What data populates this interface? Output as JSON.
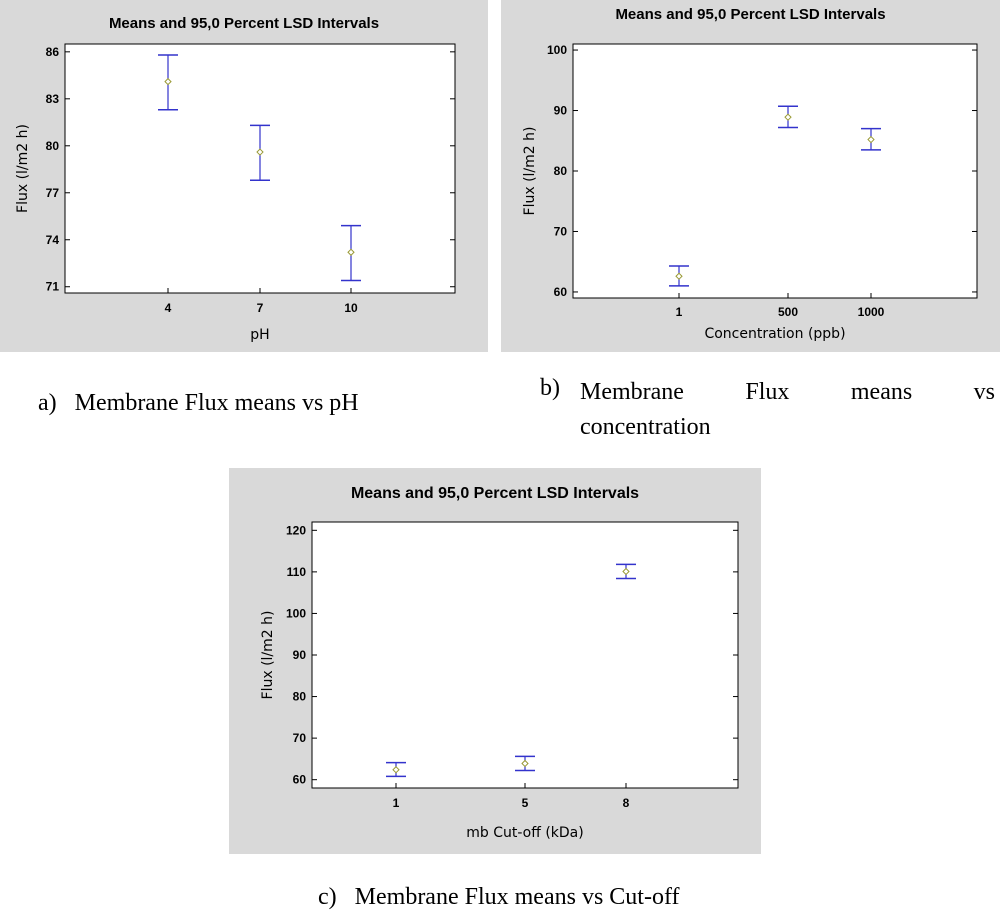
{
  "chart_data": [
    {
      "type": "scatter",
      "title": "Means and 95,0 Percent LSD Intervals",
      "xlabel": "pH",
      "ylabel": "Flux (l/m2 h)",
      "categories": [
        "4",
        "7",
        "10"
      ],
      "means": [
        84.1,
        79.6,
        73.2
      ],
      "lower": [
        82.3,
        77.8,
        71.4
      ],
      "upper": [
        85.8,
        81.3,
        74.9
      ],
      "ylim": [
        70.6,
        86.5
      ],
      "yticks": [
        86,
        83,
        80,
        77,
        74,
        71
      ],
      "grid": false,
      "colors": {
        "interval": "#3333cc",
        "marker": "#999933"
      }
    },
    {
      "type": "scatter",
      "title": "Means and 95,0 Percent LSD Intervals",
      "xlabel": "Concentration (ppb)",
      "ylabel": "Flux (l/m2 h)",
      "categories": [
        "1",
        "500",
        "1000"
      ],
      "means": [
        62.6,
        88.9,
        85.2
      ],
      "lower": [
        61.0,
        87.2,
        83.5
      ],
      "upper": [
        64.3,
        90.7,
        87.0
      ],
      "ylim": [
        59,
        101
      ],
      "yticks": [
        100,
        90,
        80,
        70,
        60
      ],
      "grid": false,
      "colors": {
        "interval": "#3333cc",
        "marker": "#999933"
      }
    },
    {
      "type": "scatter",
      "title": "Means and 95,0 Percent LSD Intervals",
      "xlabel": "mb Cut-off (kDa)",
      "ylabel": "Flux (l/m2 h)",
      "categories": [
        "1",
        "5",
        "8"
      ],
      "means": [
        62.4,
        63.9,
        110.1
      ],
      "lower": [
        60.8,
        62.2,
        108.4
      ],
      "upper": [
        64.1,
        65.6,
        111.8
      ],
      "ylim": [
        58,
        122
      ],
      "yticks": [
        120,
        110,
        100,
        90,
        80,
        70,
        60
      ],
      "grid": false,
      "colors": {
        "interval": "#3333cc",
        "marker": "#999933"
      }
    }
  ],
  "captions": [
    {
      "marker": "a)",
      "text": "Membrane Flux means vs pH"
    },
    {
      "marker": "b)",
      "text": "Membrane Flux means vs concentration"
    },
    {
      "marker": "c)",
      "text": "Membrane Flux means vs Cut-off"
    }
  ]
}
